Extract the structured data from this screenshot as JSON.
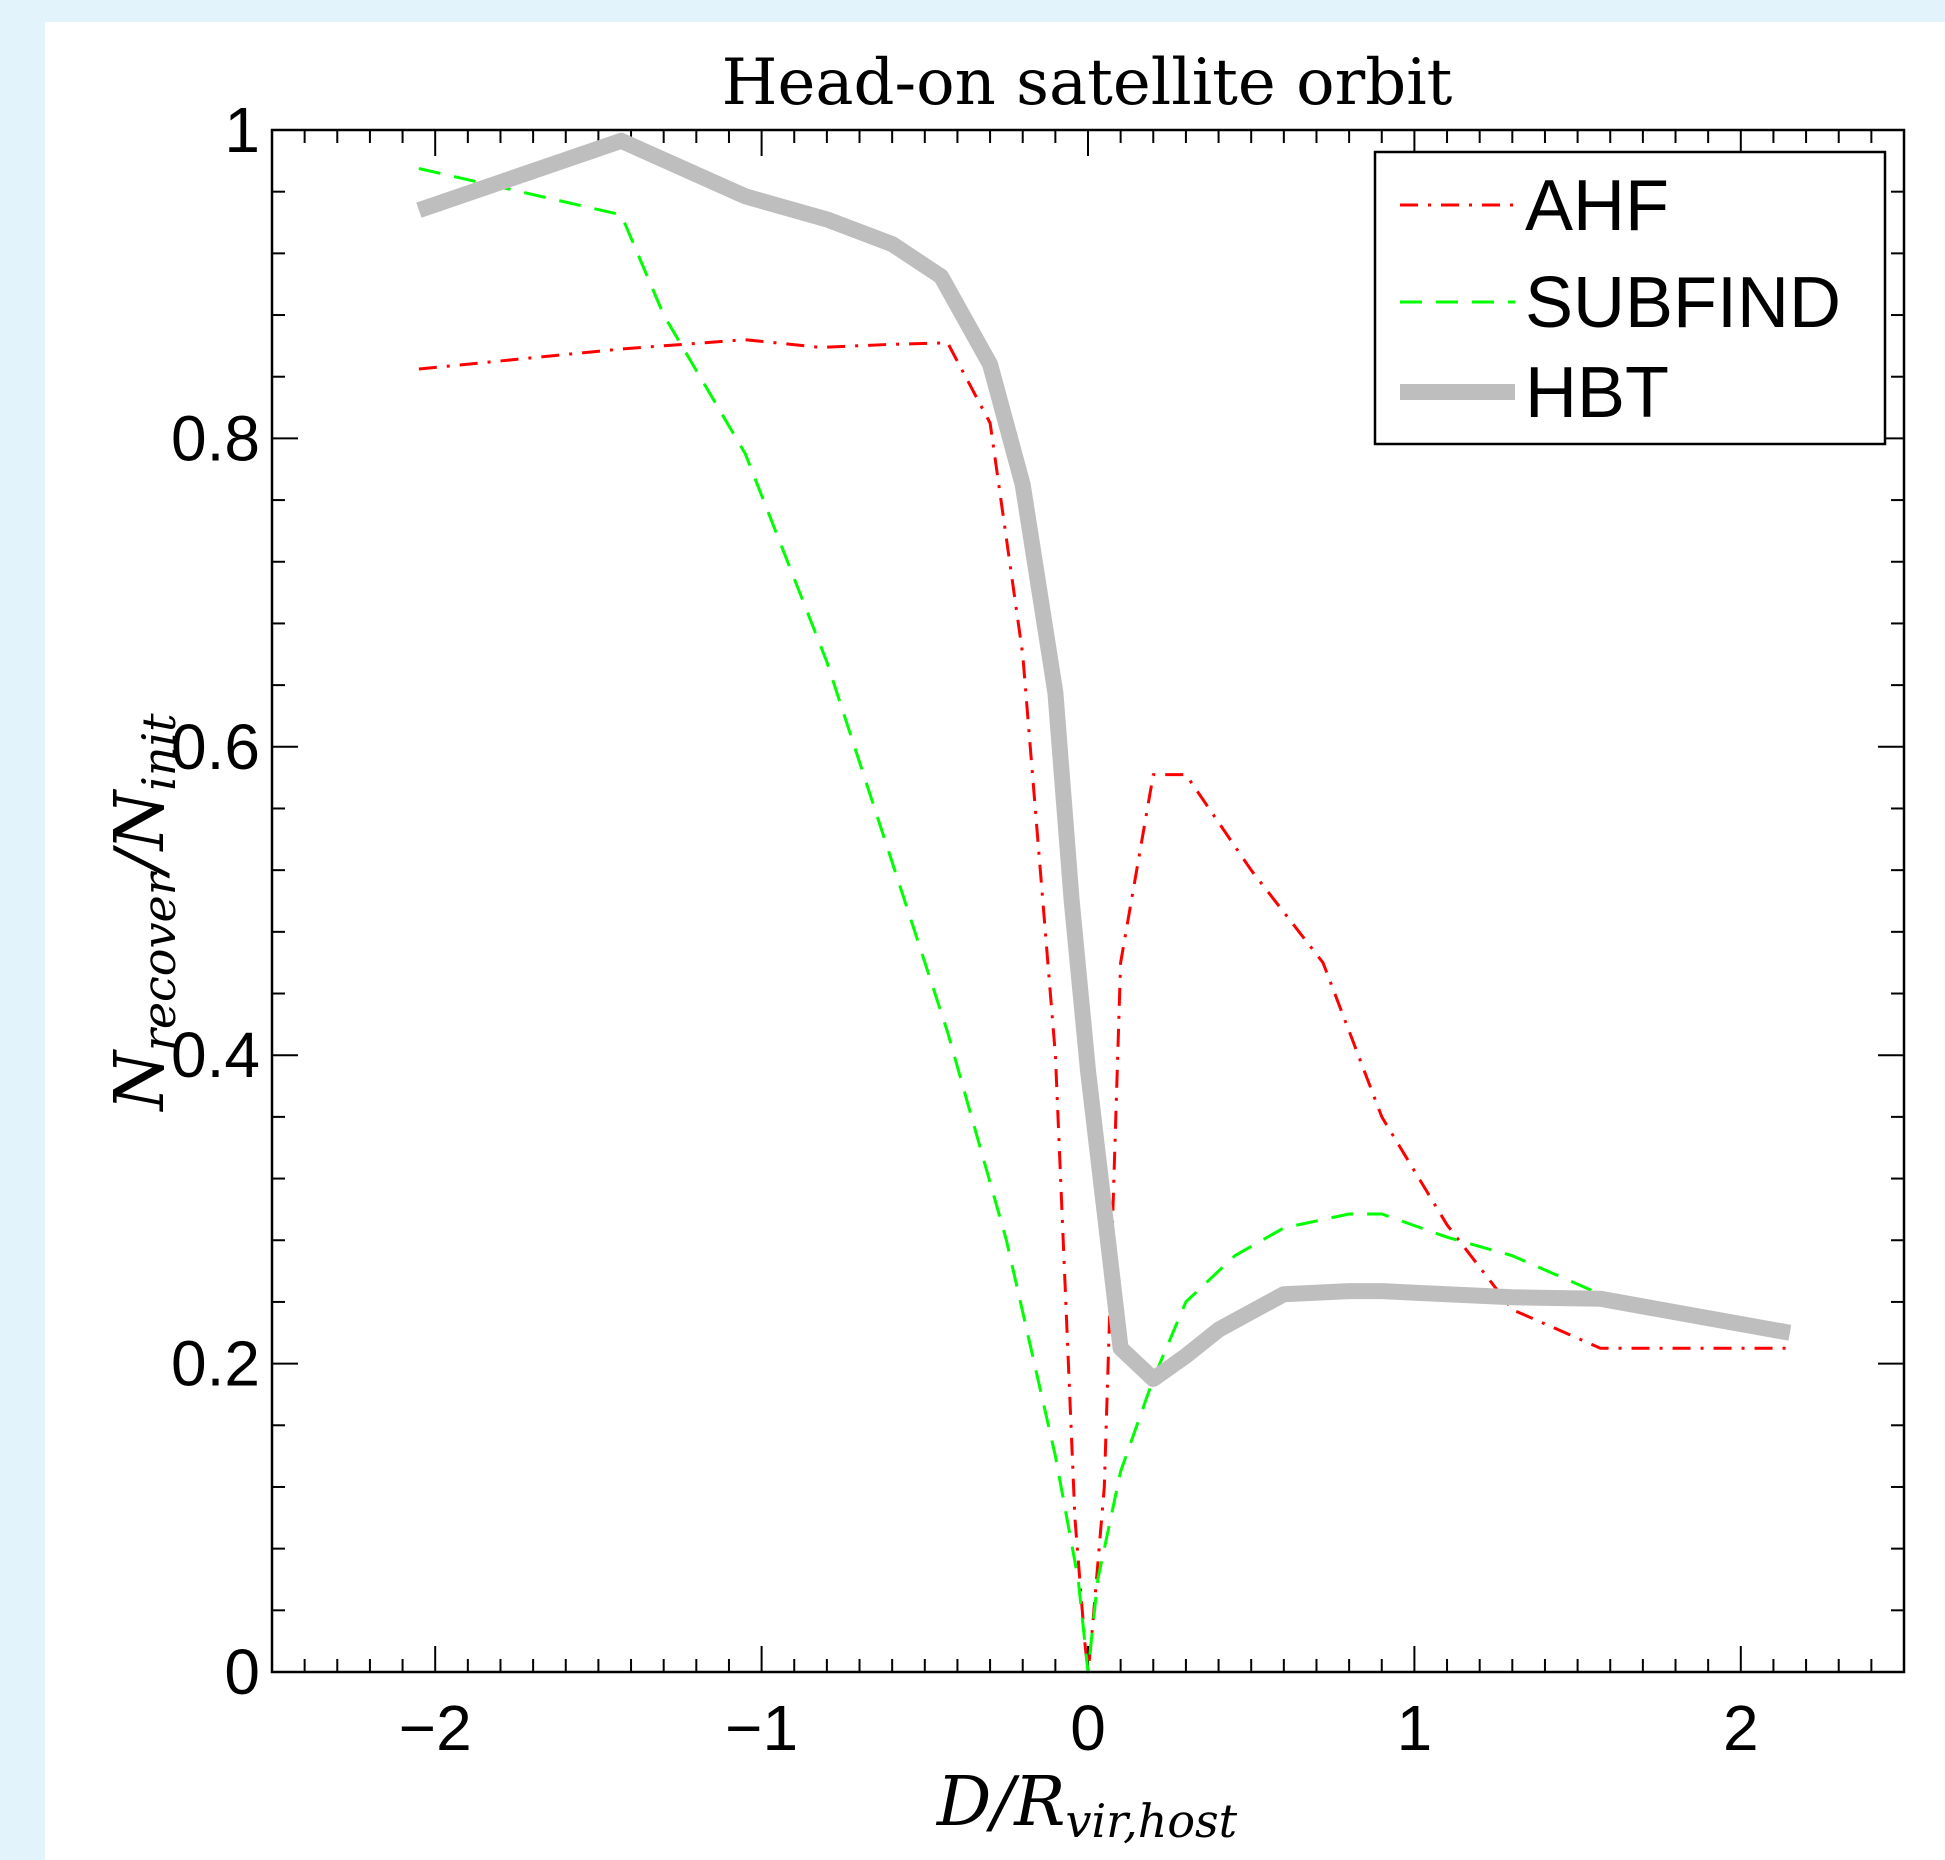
{
  "chart_data": {
    "type": "line",
    "title": "Head-on satellite orbit",
    "xlabel": {
      "main": "D/R",
      "sub": "vir,host"
    },
    "ylabel": {
      "main": "N",
      "sub1": "recover",
      "mid": "/N",
      "sub2": "init"
    },
    "xlim": [
      -2.5,
      2.5
    ],
    "ylim": [
      0,
      1
    ],
    "xticks": [
      -2,
      -1,
      0,
      1,
      2
    ],
    "xtick_labels": [
      "−2",
      "−1",
      "0",
      "1",
      "2"
    ],
    "yticks": [
      0,
      0.2,
      0.4,
      0.6,
      0.8,
      1
    ],
    "ytick_labels": [
      "0",
      "0.2",
      "0.4",
      "0.6",
      "0.8",
      "1"
    ],
    "legend_position": "top-right",
    "series": [
      {
        "name": "AHF",
        "color": "#ff0000",
        "style": "dashdot",
        "x": [
          -2.05,
          -1.43,
          -1.05,
          -0.82,
          -0.6,
          -0.43,
          -0.3,
          -0.2,
          -0.1,
          -0.04,
          -0.01,
          0.0,
          0.01,
          0.05,
          0.1,
          0.2,
          0.3,
          0.5,
          0.72,
          0.9,
          1.1,
          1.3,
          1.57,
          2.15
        ],
        "y": [
          0.845,
          0.858,
          0.864,
          0.859,
          0.861,
          0.862,
          0.81,
          0.66,
          0.4,
          0.1,
          0.02,
          0.0,
          0.02,
          0.12,
          0.46,
          0.582,
          0.582,
          0.52,
          0.46,
          0.36,
          0.29,
          0.235,
          0.21,
          0.21
        ]
      },
      {
        "name": "SUBFIND",
        "color": "#00ff00",
        "style": "dashed",
        "x": [
          -2.05,
          -1.43,
          -1.3,
          -1.05,
          -0.8,
          -0.6,
          -0.43,
          -0.25,
          -0.1,
          -0.03,
          0.0,
          0.03,
          0.1,
          0.2,
          0.3,
          0.45,
          0.6,
          0.8,
          0.9,
          1.1,
          1.3,
          1.57,
          2.15
        ],
        "y": [
          0.975,
          0.945,
          0.88,
          0.79,
          0.655,
          0.525,
          0.415,
          0.28,
          0.14,
          0.06,
          0.0,
          0.06,
          0.13,
          0.19,
          0.24,
          0.27,
          0.288,
          0.297,
          0.297,
          0.282,
          0.27,
          0.245,
          0.22
        ]
      },
      {
        "name": "HBT",
        "color": "#bebebe",
        "style": "solid",
        "x": [
          -2.05,
          -1.43,
          -1.05,
          -0.8,
          -0.6,
          -0.45,
          -0.3,
          -0.2,
          -0.1,
          -0.05,
          0.0,
          0.05,
          0.1,
          0.2,
          0.3,
          0.4,
          0.6,
          0.8,
          0.9,
          1.1,
          1.3,
          1.57,
          2.15
        ],
        "y": [
          0.948,
          0.993,
          0.957,
          0.942,
          0.926,
          0.905,
          0.848,
          0.77,
          0.635,
          0.5,
          0.39,
          0.3,
          0.21,
          0.19,
          0.205,
          0.222,
          0.245,
          0.247,
          0.247,
          0.245,
          0.243,
          0.242,
          0.22
        ]
      }
    ]
  }
}
